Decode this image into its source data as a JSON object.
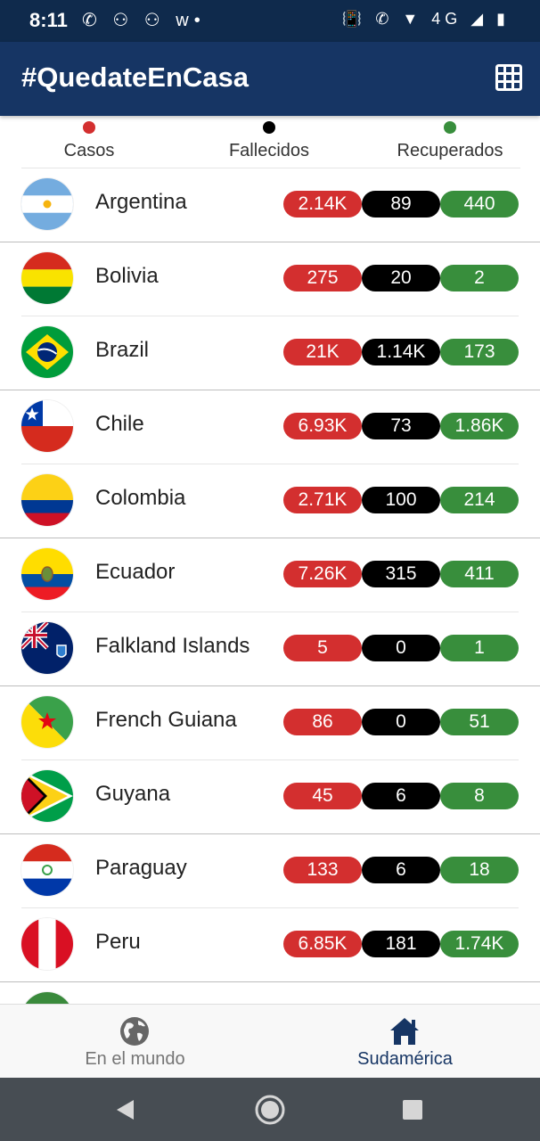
{
  "status_bar": {
    "time": "8:11",
    "left_icons": "✆ ⚇ ⚇ w•",
    "right_icons": "📳 ✆ ▼ 4G ◢ ▮"
  },
  "app_bar": {
    "title": "#QuedateEnCasa",
    "action_icon": "grid-icon"
  },
  "legend": [
    {
      "label": "Casos",
      "color": "#d32f2f"
    },
    {
      "label": "Fallecidos",
      "color": "#000000"
    },
    {
      "label": "Recuperados",
      "color": "#388e3c"
    }
  ],
  "colors": {
    "cases": "#d32f2f",
    "deaths": "#000000",
    "recovered": "#388e3c",
    "app_bar": "#163564",
    "status_bar": "#0f2a4c",
    "active_nav": "#163564"
  },
  "countries": [
    {
      "name": "Argentina",
      "cases": "2.14K",
      "deaths": "89",
      "recovered": "440"
    },
    {
      "name": "Bolivia",
      "cases": "275",
      "deaths": "20",
      "recovered": "2"
    },
    {
      "name": "Brazil",
      "cases": "21K",
      "deaths": "1.14K",
      "recovered": "173"
    },
    {
      "name": "Chile",
      "cases": "6.93K",
      "deaths": "73",
      "recovered": "1.86K"
    },
    {
      "name": "Colombia",
      "cases": "2.71K",
      "deaths": "100",
      "recovered": "214"
    },
    {
      "name": "Ecuador",
      "cases": "7.26K",
      "deaths": "315",
      "recovered": "411"
    },
    {
      "name": "Falkland Islands",
      "cases": "5",
      "deaths": "0",
      "recovered": "1"
    },
    {
      "name": "French Guiana",
      "cases": "86",
      "deaths": "0",
      "recovered": "51"
    },
    {
      "name": "Guyana",
      "cases": "45",
      "deaths": "6",
      "recovered": "8"
    },
    {
      "name": "Paraguay",
      "cases": "133",
      "deaths": "6",
      "recovered": "18"
    },
    {
      "name": "Peru",
      "cases": "6.85K",
      "deaths": "181",
      "recovered": "1.74K"
    }
  ],
  "bottom_nav": {
    "world": {
      "label": "En el mundo",
      "icon": "globe-icon",
      "active": false
    },
    "south_america": {
      "label": "Sudamérica",
      "icon": "home-icon",
      "active": true
    }
  },
  "system_nav": {
    "back": "back-icon",
    "home": "home-circle-icon",
    "recents": "recents-icon"
  }
}
